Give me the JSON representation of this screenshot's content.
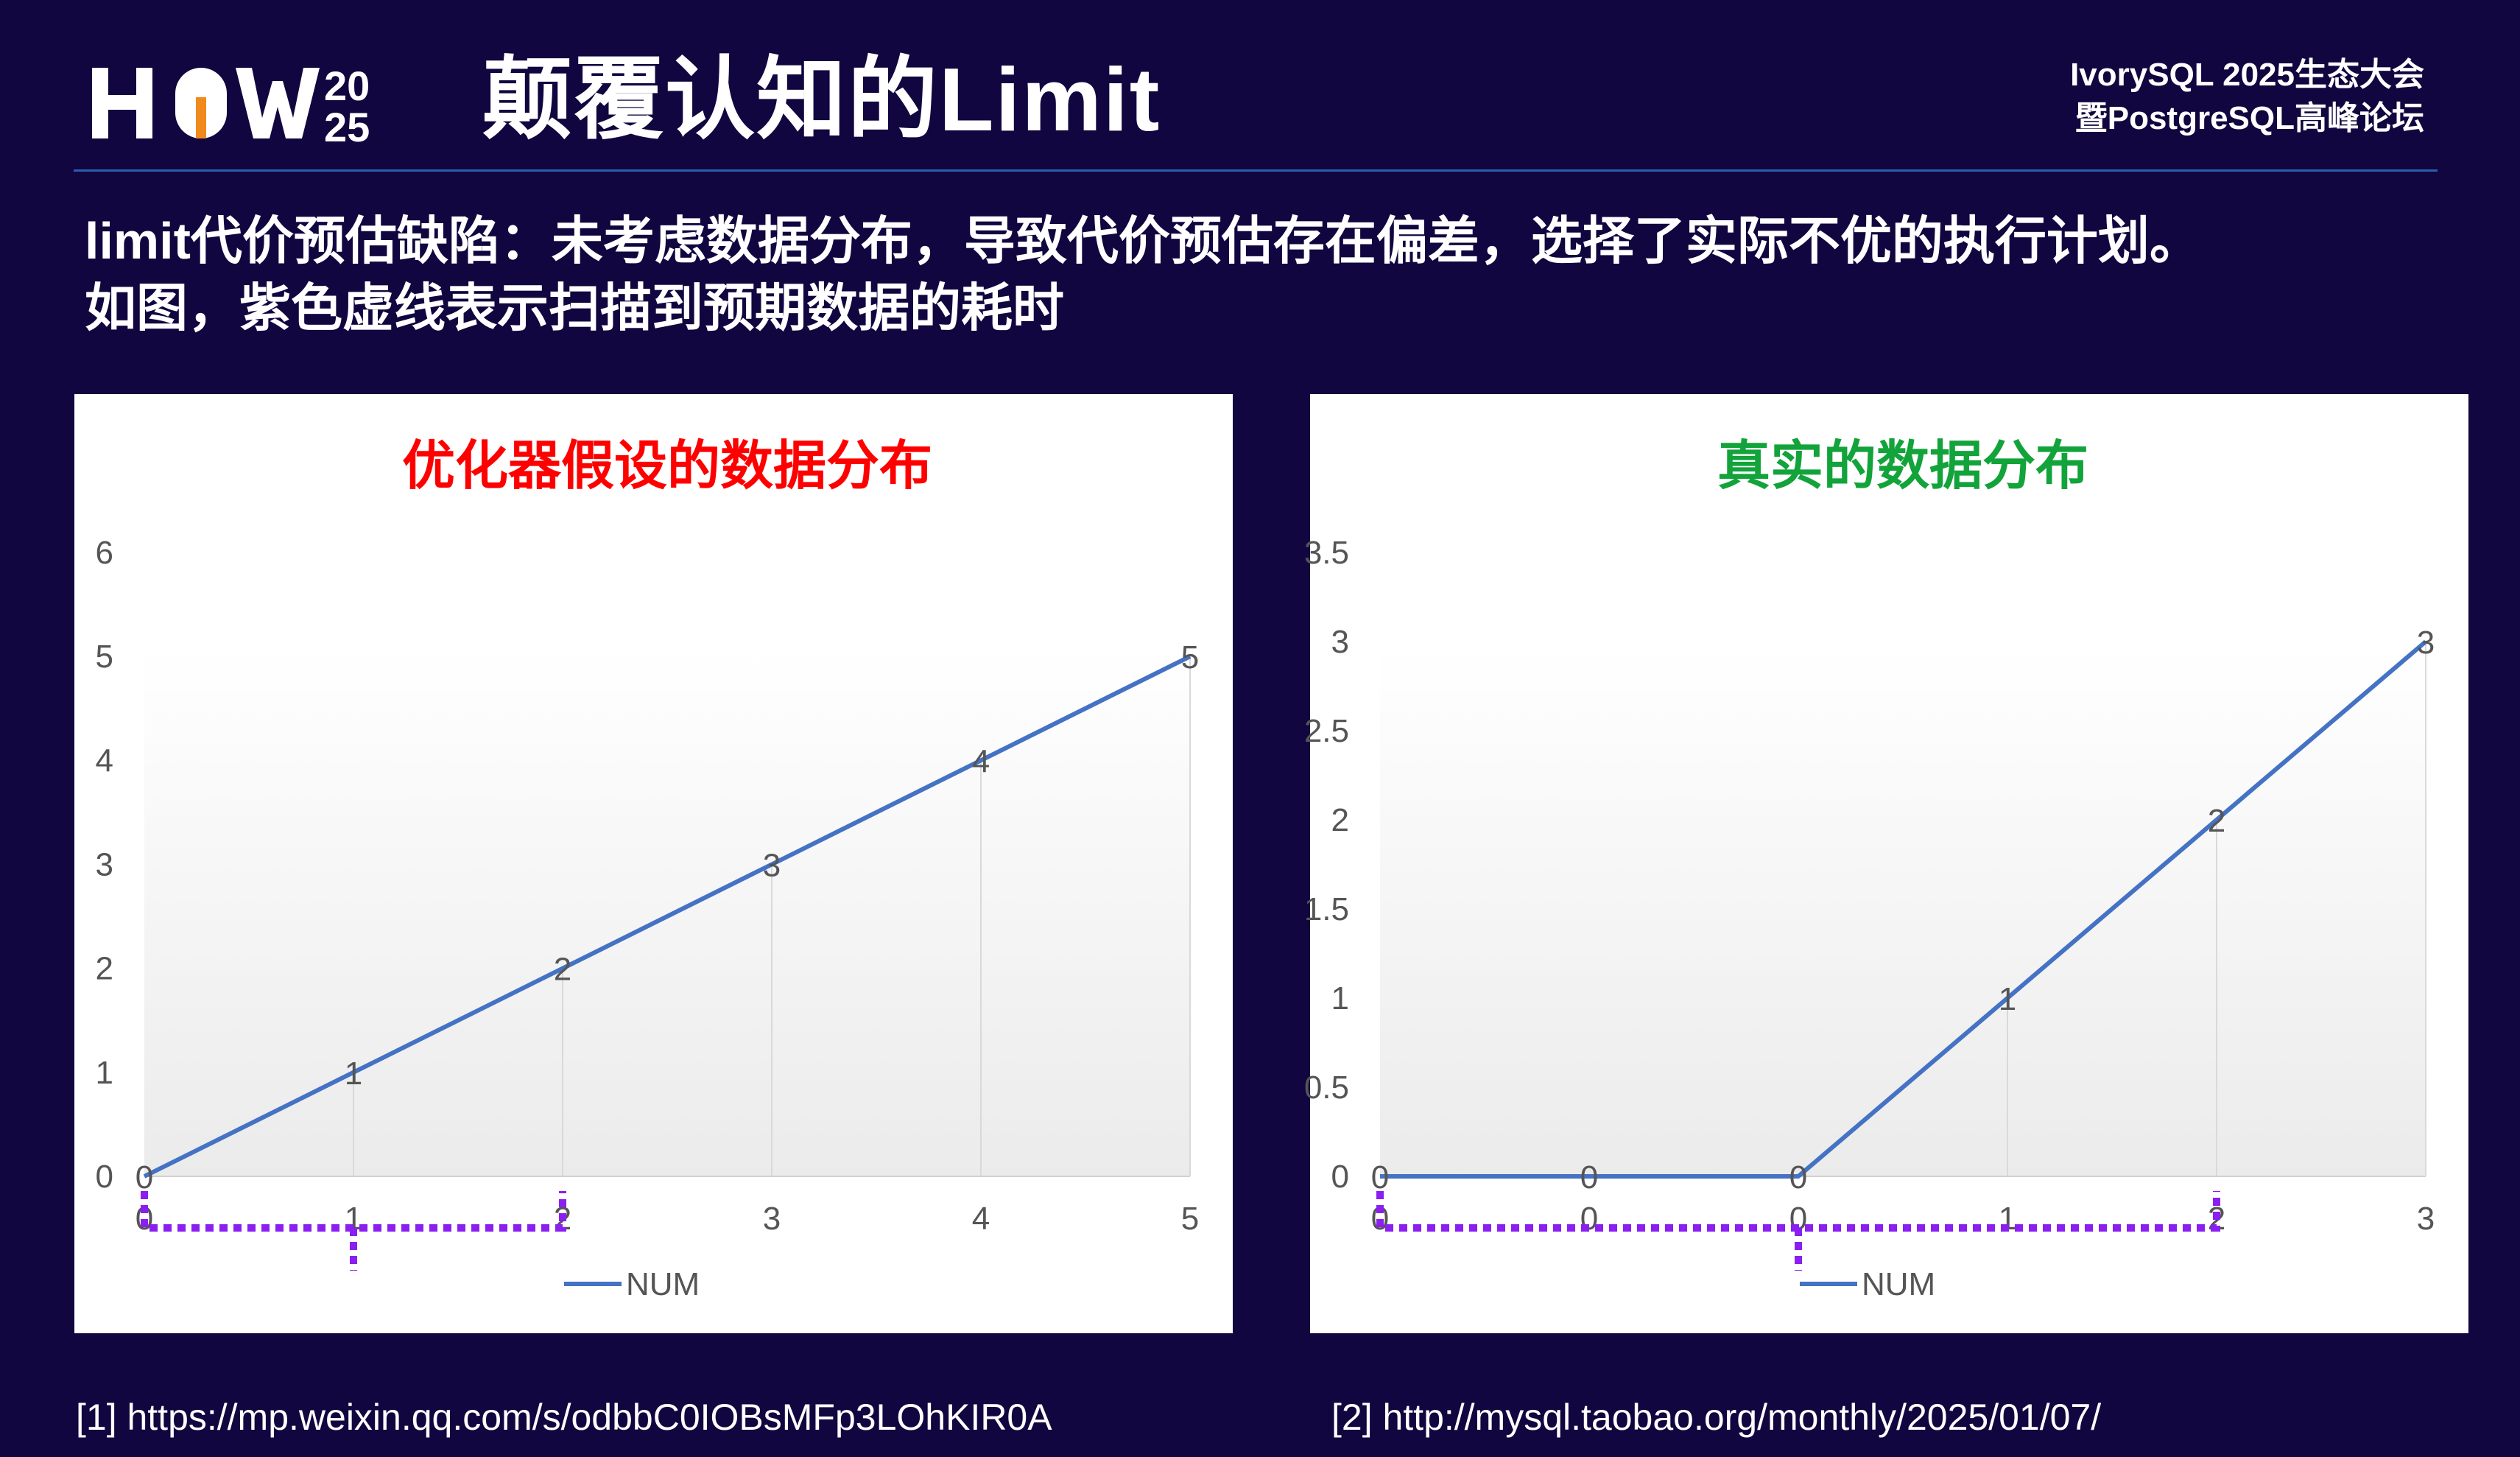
{
  "header": {
    "logo": {
      "letters_top": "HOW",
      "year_top": "20",
      "year_bottom": "25"
    },
    "title": "颠覆认知的Limit",
    "event_line1": "IvorySQL 2025生态大会",
    "event_line2": "暨PostgreSQL高峰论坛"
  },
  "description": {
    "line1": "limit代价预估缺陷：未考虑数据分布，导致代价预估存在偏差，选择了实际不优的执行计划。",
    "line2": "如图，紫色虚线表示扫描到预期数据的耗时"
  },
  "colors": {
    "background": "#11063f",
    "line": "#4472c4",
    "dashed": "#8b1ef0",
    "title_left": "#ff0000",
    "title_right": "#12a33a"
  },
  "chart_data": [
    {
      "type": "line",
      "title": "优化器假设的数据分布",
      "categories": [
        "0",
        "1",
        "2",
        "3",
        "4",
        "5"
      ],
      "series": [
        {
          "name": "NUM",
          "values": [
            0,
            1,
            2,
            3,
            4,
            5
          ]
        }
      ],
      "data_labels": [
        "0",
        "1",
        "2",
        "3",
        "4",
        "5"
      ],
      "y_ticks": [
        "0",
        "1",
        "2",
        "3",
        "4",
        "5",
        "6"
      ],
      "ylim": [
        0,
        6
      ],
      "legend": "bottom",
      "dashed_bracket_categories": [
        0,
        2
      ]
    },
    {
      "type": "line",
      "title": "真实的数据分布",
      "categories": [
        "0",
        "0",
        "0",
        "1",
        "2",
        "3"
      ],
      "series": [
        {
          "name": "NUM",
          "values": [
            0,
            0,
            0,
            1,
            2,
            3
          ]
        }
      ],
      "data_labels": [
        "0",
        "0",
        "0",
        "1",
        "2",
        "3"
      ],
      "y_ticks": [
        "0",
        "0.5",
        "1",
        "1.5",
        "2",
        "2.5",
        "3",
        "3.5"
      ],
      "ylim": [
        0,
        3.5
      ],
      "legend": "bottom",
      "dashed_bracket_categories": [
        0,
        4
      ]
    }
  ],
  "references": [
    "[1] https://mp.weixin.qq.com/s/odbbC0IOBsMFp3LOhKIR0A",
    "[2] http://mysql.taobao.org/monthly/2025/01/07/"
  ]
}
